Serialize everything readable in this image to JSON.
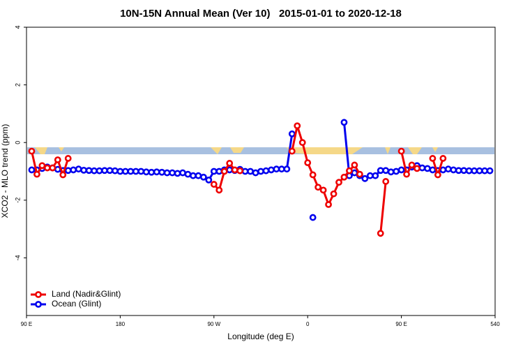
{
  "chart_data": {
    "type": "line",
    "title": "10N-15N Annual Mean (Ver 10)   2015-01-01 to 2020-12-18",
    "xlabel": "Longitude (deg E)",
    "ylabel": "XCO2 - MLO trend (ppm)",
    "x": [
      95,
      100,
      105,
      110,
      115,
      120,
      125,
      130,
      135,
      140,
      145,
      150,
      155,
      160,
      165,
      170,
      175,
      180,
      185,
      190,
      195,
      200,
      205,
      210,
      215,
      220,
      225,
      230,
      235,
      240,
      245,
      250,
      255,
      260,
      265,
      270,
      275,
      280,
      285,
      290,
      295,
      300,
      305,
      310,
      315,
      320,
      325,
      330,
      335,
      340,
      345,
      350,
      355,
      360,
      365,
      370,
      375,
      380,
      385,
      390,
      395,
      400,
      405,
      410,
      415,
      420,
      425,
      430,
      435,
      440,
      445,
      450,
      455,
      460,
      465,
      470,
      475,
      480,
      485,
      490,
      495,
      500,
      505,
      510,
      515,
      520,
      525,
      530,
      535
    ],
    "series": [
      {
        "name": "Land (Nadir&Glint)",
        "color": "#ee0000",
        "values": [
          -0.3,
          -1.1,
          -0.8,
          -0.88,
          -0.88,
          -0.6,
          -1.12,
          -0.55,
          null,
          null,
          null,
          null,
          null,
          null,
          null,
          null,
          null,
          null,
          null,
          null,
          null,
          null,
          null,
          null,
          null,
          null,
          null,
          null,
          null,
          null,
          null,
          null,
          null,
          null,
          null,
          -1.45,
          -1.65,
          -1.0,
          -0.72,
          -0.95,
          -0.98,
          null,
          null,
          null,
          null,
          null,
          null,
          null,
          null,
          null,
          -0.3,
          0.58,
          0.0,
          -0.7,
          -1.12,
          -1.55,
          -1.65,
          -2.15,
          -1.78,
          -1.38,
          -1.2,
          -0.98,
          -0.78,
          -1.1,
          null,
          null,
          null,
          -3.15,
          -1.35,
          null,
          null,
          -0.3,
          -1.1,
          -0.78,
          -0.9,
          null,
          null,
          -0.55,
          -1.12,
          -0.55,
          null,
          null,
          null,
          null,
          null,
          null,
          null,
          null,
          null
        ]
      },
      {
        "name": "Ocean (Glint)",
        "color": "#0000ee",
        "values": [
          -0.95,
          -0.95,
          -0.9,
          -0.85,
          -0.88,
          -0.93,
          -0.97,
          -0.97,
          -0.95,
          -0.92,
          -0.96,
          -0.97,
          -0.98,
          -0.98,
          -0.97,
          -0.97,
          -0.98,
          -1.0,
          -1.0,
          -1.0,
          -1.0,
          -1.0,
          -1.02,
          -1.03,
          -1.02,
          -1.03,
          -1.05,
          -1.05,
          -1.07,
          -1.05,
          -1.1,
          -1.15,
          -1.15,
          -1.2,
          -1.3,
          -1.0,
          -1.0,
          -0.95,
          -0.95,
          -0.97,
          -0.93,
          -1.0,
          -1.0,
          -1.05,
          -1.0,
          -0.98,
          -0.95,
          -0.92,
          -0.92,
          -0.92,
          0.3,
          null,
          null,
          null,
          -2.6,
          null,
          null,
          null,
          null,
          null,
          0.7,
          -1.15,
          -1.05,
          -1.15,
          -1.25,
          -1.15,
          -1.15,
          -0.97,
          -0.97,
          -1.02,
          -1.0,
          -0.95,
          -0.95,
          -0.85,
          -0.8,
          -0.88,
          -0.9,
          -0.95,
          -0.97,
          -0.95,
          -0.92,
          -0.95,
          -0.97,
          -0.97,
          -0.98,
          -0.98,
          -0.98,
          -0.98,
          -0.98
        ]
      }
    ],
    "xlim": [
      90,
      540
    ],
    "xticks": [
      {
        "value": 90,
        "label": "90 E"
      },
      180,
      {
        "value": 270,
        "label": "90 W"
      },
      {
        "value": 360,
        "label": "0"
      },
      {
        "value": 450,
        "label": "90 E"
      },
      540
    ],
    "ylim": [
      -6,
      4
    ],
    "yticks": [
      4,
      2,
      0,
      -2,
      -4
    ],
    "legend": "bottom-left"
  }
}
